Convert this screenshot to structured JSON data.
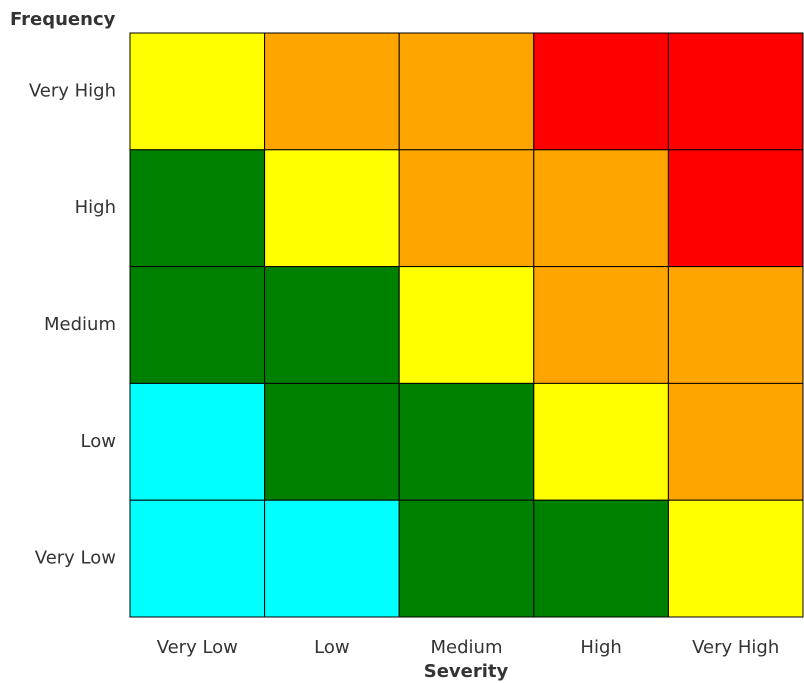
{
  "chart_data": {
    "type": "heatmap",
    "x_label": "Severity",
    "y_label": "Frequency",
    "x_categories": [
      "Very Low",
      "Low",
      "Medium",
      "High",
      "Very High"
    ],
    "y_categories": [
      "Very High",
      "High",
      "Medium",
      "Low",
      "Very Low"
    ],
    "cells": [
      [
        "#ffff00",
        "#ffa500",
        "#ffa500",
        "#ff0000",
        "#ff0000"
      ],
      [
        "#008000",
        "#ffff00",
        "#ffa500",
        "#ffa500",
        "#ff0000"
      ],
      [
        "#008000",
        "#008000",
        "#ffff00",
        "#ffa500",
        "#ffa500"
      ],
      [
        "#00ffff",
        "#008000",
        "#008000",
        "#ffff00",
        "#ffa500"
      ],
      [
        "#00ffff",
        "#00ffff",
        "#008000",
        "#008000",
        "#ffff00"
      ]
    ]
  }
}
